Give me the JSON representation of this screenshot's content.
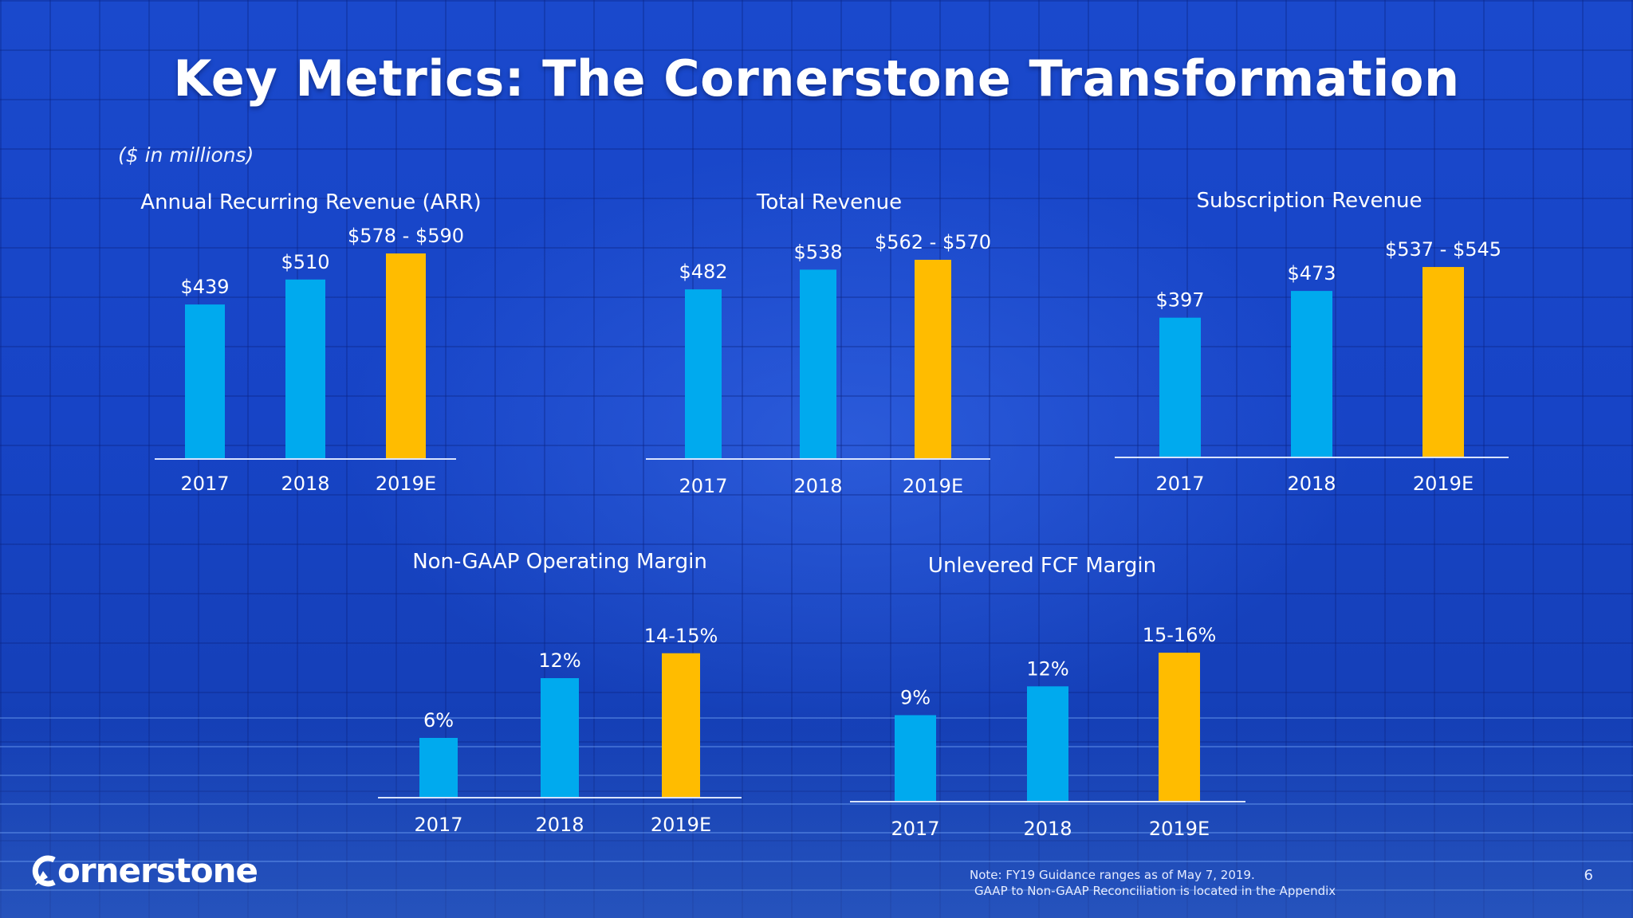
{
  "slide": {
    "title": "Key Metrics: The Cornerstone Transformation",
    "subtitle": "($ in millions)",
    "logo_text": "ornerstone",
    "note_line1": "Note: FY19 Guidance ranges as of May 7, 2019.",
    "note_line2": "GAAP to Non-GAAP Reconciliation is located in the Appendix",
    "page_number": "6"
  },
  "colors": {
    "actual": "#00aaee",
    "estimate": "#ffbc00",
    "axis_line": "#d9e4ff"
  },
  "chart_data": [
    {
      "type": "bar",
      "title": "Annual Recurring Revenue (ARR)",
      "categories": [
        "2017",
        "2018",
        "2019E"
      ],
      "values": [
        439,
        510,
        584
      ],
      "labels": [
        "$439",
        "$510",
        "$578 - $590"
      ],
      "unit": "$M",
      "ylim": [
        0,
        600
      ]
    },
    {
      "type": "bar",
      "title": "Total Revenue",
      "categories": [
        "2017",
        "2018",
        "2019E"
      ],
      "values": [
        482,
        538,
        566
      ],
      "labels": [
        "$482",
        "$538",
        "$562 - $570"
      ],
      "unit": "$M",
      "ylim": [
        0,
        600
      ]
    },
    {
      "type": "bar",
      "title": "Subscription Revenue",
      "categories": [
        "2017",
        "2018",
        "2019E"
      ],
      "values": [
        397,
        473,
        541
      ],
      "labels": [
        "$397",
        "$473",
        "$537 - $545"
      ],
      "unit": "$M",
      "ylim": [
        0,
        600
      ]
    },
    {
      "type": "bar",
      "title": "Non-GAAP Operating Margin",
      "categories": [
        "2017",
        "2018",
        "2019E"
      ],
      "values": [
        6,
        12,
        14.5
      ],
      "labels": [
        "6%",
        "12%",
        "14-15%"
      ],
      "unit": "%",
      "ylim": [
        0,
        16
      ]
    },
    {
      "type": "bar",
      "title": "Unlevered FCF Margin",
      "categories": [
        "2017",
        "2018",
        "2019E"
      ],
      "values": [
        9,
        12,
        15.5
      ],
      "labels": [
        "9%",
        "12%",
        "15-16%"
      ],
      "unit": "%",
      "ylim": [
        0,
        17
      ]
    }
  ]
}
